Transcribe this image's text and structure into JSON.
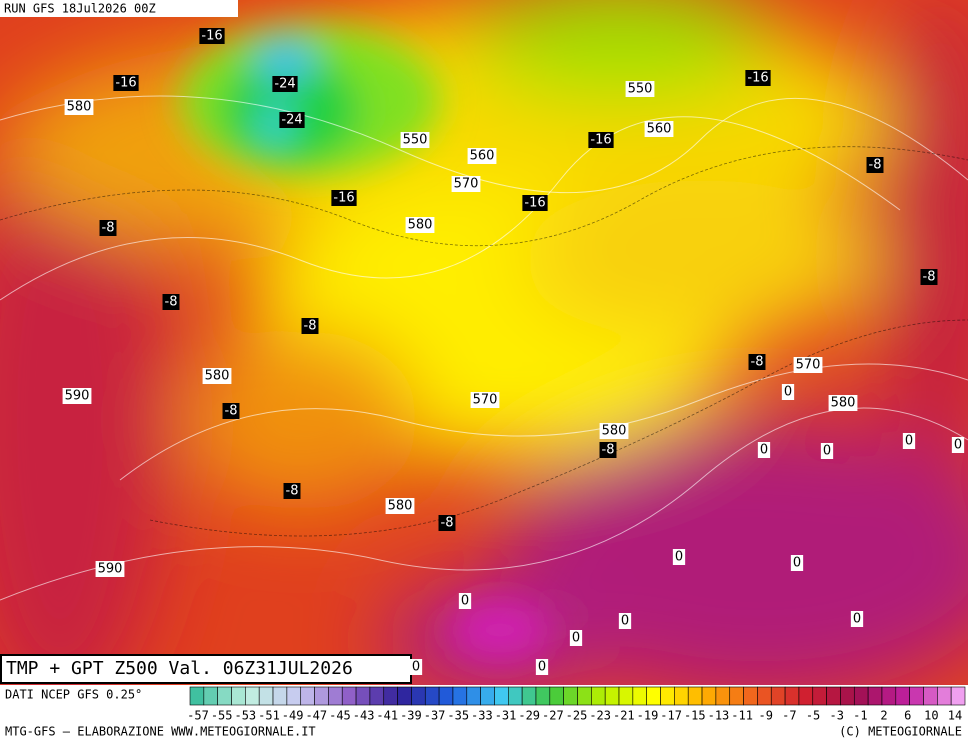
{
  "header": {
    "run": "RUN GFS 18Jul2026 00Z"
  },
  "map": {
    "title": "TMP + GPT Z500 Val. 06Z31JUL2026",
    "contour_labels": [
      "-16",
      "-16",
      "-24",
      "-24",
      "-16",
      "-16",
      "-8",
      "-16",
      "-16",
      "-8",
      "-8",
      "-8",
      "-8",
      "-8",
      "-8",
      "-8",
      "-8",
      "-8",
      "0",
      "0",
      "0",
      "0",
      "0",
      "0",
      "0",
      "0",
      "0",
      "0",
      "0",
      "0",
      "0",
      "580",
      "550",
      "560",
      "550",
      "560",
      "570",
      "580",
      "580",
      "590",
      "570",
      "570",
      "580",
      "580",
      "580",
      "590"
    ]
  },
  "legend": {
    "source": "DATI NCEP GFS 0.25°",
    "labels": [
      "-57",
      "-55",
      "-53",
      "-51",
      "-49",
      "-47",
      "-45",
      "-43",
      "-41",
      "-39",
      "-37",
      "-35",
      "-33",
      "-31",
      "-29",
      "-27",
      "-25",
      "-23",
      "-21",
      "-19",
      "-17",
      "-15",
      "-13",
      "-11",
      "-9",
      "-7",
      "-5",
      "-3",
      "-1",
      "2",
      "6",
      "10",
      "14"
    ]
  },
  "footer": {
    "left": "MTG-GFS — ELABORAZIONE WWW.METEOGIORNALE.IT",
    "right": "(C) METEOGIORNALE"
  }
}
